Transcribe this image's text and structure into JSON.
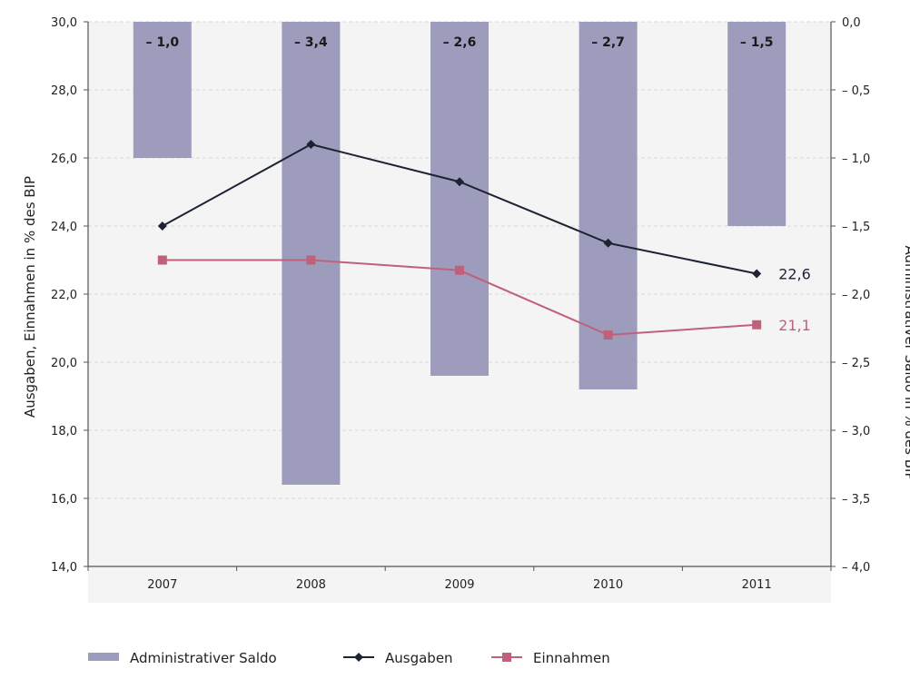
{
  "chart_data": {
    "type": "bar+line",
    "categories": [
      "2007",
      "2008",
      "2009",
      "2010",
      "2011"
    ],
    "bars": {
      "name": "Administrativer Saldo",
      "axis": "right",
      "values": [
        -1.0,
        -3.4,
        -2.6,
        -2.7,
        -1.5
      ],
      "labels": [
        "– 1,0",
        "– 3,4",
        "– 2,6",
        "– 2,7",
        "– 1,5"
      ],
      "color": "#9e9cbc"
    },
    "series": [
      {
        "name": "Ausgaben",
        "axis": "left",
        "values": [
          24.0,
          26.4,
          25.3,
          23.5,
          22.6
        ],
        "color": "#1c2333",
        "marker": "diamond",
        "end_label": "22,6"
      },
      {
        "name": "Einnahmen",
        "axis": "left",
        "values": [
          23.0,
          23.0,
          22.7,
          20.8,
          21.1
        ],
        "color": "#c0617c",
        "marker": "square",
        "end_label": "21,1"
      }
    ],
    "y_left": {
      "label": "Ausgaben, Einnahmen in % des BIP",
      "range": [
        14.0,
        30.0
      ],
      "ticks": [
        "14,0",
        "16,0",
        "18,0",
        "20,0",
        "22,0",
        "24,0",
        "26,0",
        "28,0",
        "30,0"
      ]
    },
    "y_right": {
      "label": "Administrativer Saldo in % des BIP",
      "range": [
        -4.0,
        0.0
      ],
      "ticks": [
        "– 4,0",
        "– 3,5",
        "– 3,0",
        "– 2,5",
        "– 2,0",
        "– 1,5",
        "– 1,0",
        "– 0,5",
        "0,0"
      ]
    },
    "grid": true,
    "legend_position": "bottom-left"
  },
  "legend": [
    {
      "label": "Administrativer Saldo",
      "kind": "bar",
      "color": "#9e9cbc"
    },
    {
      "label": "Ausgaben",
      "kind": "line-diamond",
      "color": "#1c2333"
    },
    {
      "label": "Einnahmen",
      "kind": "line-square",
      "color": "#c0617c"
    }
  ],
  "colors": {
    "plot_background": "#f4f4f4",
    "grid": "#d8d8d8",
    "axis": "#555555"
  }
}
